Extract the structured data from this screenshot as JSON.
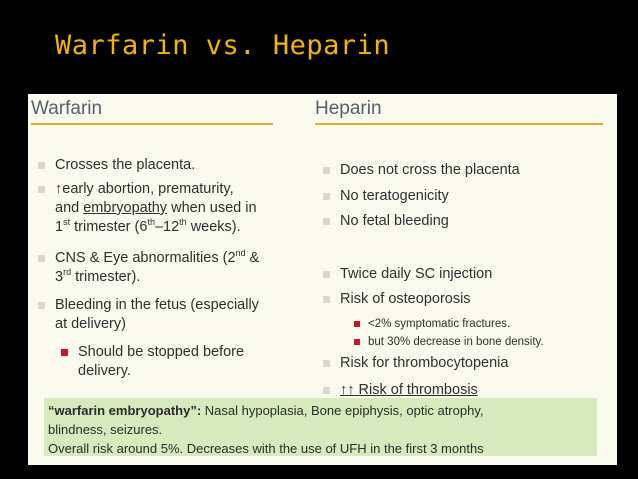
{
  "slide": {
    "title": "Warfarin vs. Heparin"
  },
  "warfarin": {
    "heading": "Warfarin",
    "b1": "Crosses the placenta.",
    "b2_pre": "↑early abortion, prematurity,",
    "b2_l2_pre": "and ",
    "b2_l2_u": "embryopathy",
    "b2_l2_post": " when used in",
    "b2_l3_a": "1",
    "b2_l3_a_sup": "st",
    "b2_l3_b": " trimester (6",
    "b2_l3_b_sup": "th",
    "b2_l3_c": "–12",
    "b2_l3_c_sup": "th",
    "b2_l3_d": " weeks).",
    "b3_l1": "CNS  & Eye abnormalities (2",
    "b3_l1_sup": "nd",
    "b3_l1_post": " &",
    "b3_l2": "3",
    "b3_l2_sup": "rd",
    "b3_l2_post": " trimester).",
    "b4_l1": "Bleeding in the fetus (especially",
    "b4_l2": "at delivery)",
    "s1_l1": "Should be stopped before",
    "s1_l2": "delivery."
  },
  "heparin": {
    "heading": "Heparin",
    "b1": "Does not cross the placenta",
    "b2": "No teratogenicity",
    "b3": "No fetal bleeding",
    "b4": "Twice daily SC injection",
    "b5": "Risk of osteoporosis",
    "s1": "<2% symptomatic fractures.",
    "s2": "but 30% decrease in bone density.",
    "b6": "Risk for thrombocytopenia",
    "b7_arrows": "↑↑",
    "b7_text": " Risk of thrombosis"
  },
  "note": {
    "label": "“warfarin embryopathy”:",
    "l1": " Nasal hypoplasia, Bone epiphysis, optic atrophy,",
    "l2": "blindness, seizures.",
    "l3": "Overall risk around 5%. Decreases with the use of UFH in the first 3 months"
  },
  "colors": {
    "title": "#f4b400",
    "heading": "#55606e",
    "rule": "#e8b021",
    "sub_bullet": "#c8162b",
    "note_bg": "#d6eabd"
  }
}
